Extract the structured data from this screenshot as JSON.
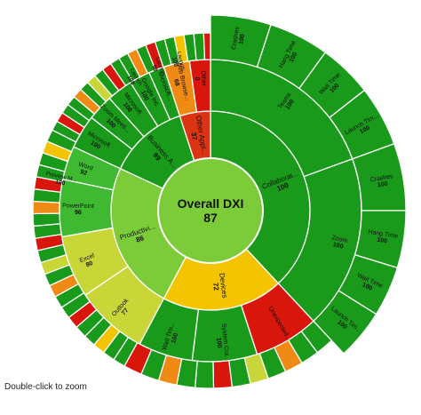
{
  "hint_text": "Double-click to zoom",
  "colors": {
    "dark_green": "#1a9a1a",
    "mid_green": "#3fb832",
    "light_green": "#7ccc3a",
    "yellow_green": "#c8d638",
    "yellow": "#f5c400",
    "orange": "#ef8a14",
    "red": "#d8160c",
    "red_orange": "#dc3412",
    "outline": "#ffffff"
  },
  "center": {
    "label": "Overall DXI",
    "value": "87"
  },
  "chart_data": {
    "type": "sunburst",
    "root": {
      "label": "Overall DXI",
      "value": 87
    },
    "children": [
      {
        "label": "Collaborat...",
        "value": 100,
        "color_key": "dark_green",
        "children": [
          {
            "label": "Teams",
            "value": 100,
            "color_key": "dark_green",
            "children": [
              {
                "label": "Crashes",
                "value": 100,
                "color_key": "dark_green"
              },
              {
                "label": "Hang Time",
                "value": 100,
                "color_key": "dark_green"
              },
              {
                "label": "Wait Time",
                "value": 100,
                "color_key": "dark_green"
              },
              {
                "label": "Launch Tim...",
                "value": 100,
                "color_key": "dark_green"
              }
            ]
          },
          {
            "label": "Zoom",
            "value": 100,
            "color_key": "dark_green",
            "children": [
              {
                "label": "Crashes",
                "value": 100,
                "color_key": "dark_green"
              },
              {
                "label": "Hang Time",
                "value": 100,
                "color_key": "dark_green"
              },
              {
                "label": "Wait Time",
                "value": 100,
                "color_key": "dark_green"
              },
              {
                "label": "Launch Tim...",
                "value": 100,
                "color_key": "dark_green"
              }
            ]
          }
        ]
      },
      {
        "label": "Devices",
        "value": 72,
        "color_key": "yellow",
        "children": [
          {
            "label": "Unexpected...",
            "value": null,
            "color_key": "red"
          },
          {
            "label": "System Cra...",
            "value": 100,
            "color_key": "dark_green"
          },
          {
            "label": "Wait Tim...",
            "value": 100,
            "color_key": "dark_green"
          }
        ]
      },
      {
        "label": "Productivi...",
        "value": 86,
        "color_key": "light_green",
        "children": [
          {
            "label": "Outlook",
            "value": 77,
            "color_key": "yellow_green"
          },
          {
            "label": "Excel",
            "value": 80,
            "color_key": "yellow_green"
          },
          {
            "label": "PowerPoint",
            "value": 96,
            "color_key": "mid_green"
          },
          {
            "label": "Word",
            "value": 92,
            "color_key": "mid_green"
          }
        ]
      },
      {
        "label": "Business A...",
        "value": 99,
        "color_key": "dark_green",
        "children": [
          {
            "label": "Microsoft",
            "value": 100,
            "color_key": "dark_green"
          },
          {
            "label": "Zoom Meeti...",
            "value": 100,
            "color_key": "dark_green"
          },
          {
            "label": "Microsoft",
            "value": 100,
            "color_key": "dark_green"
          },
          {
            "label": "Google Inc.",
            "value": 100,
            "color_key": "dark_green"
          },
          {
            "label": "Microsoft...",
            "value": null,
            "color_key": "dark_green"
          }
        ]
      },
      {
        "label": "Other Appl...",
        "value": 37,
        "color_key": "red_orange",
        "children": [
          {
            "label": "Web Browse...",
            "value": 68,
            "color_key": "orange"
          },
          {
            "label": "Other",
            "value": 0,
            "color_key": "red"
          }
        ]
      }
    ],
    "outer_ring_labels": [
      {
        "label": "Preview M...",
        "value": 100
      },
      {
        "label": "Launch",
        "value": 100
      },
      {
        "label": "Launch",
        "value": 98
      },
      {
        "label": "Launch",
        "value": 100
      }
    ]
  }
}
